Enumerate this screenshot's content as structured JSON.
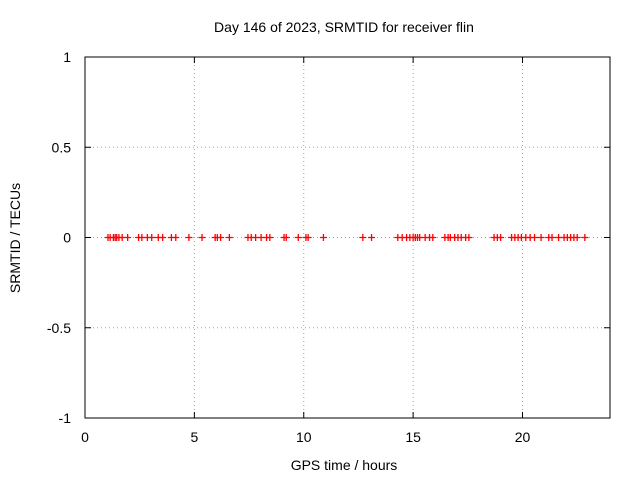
{
  "chart_data": {
    "type": "scatter",
    "title": "Day 146 of 2023, SRMTID for receiver flin",
    "xlabel": "GPS time / hours",
    "ylabel": "SRMTID / TECUs",
    "xlim": [
      0,
      24
    ],
    "ylim": [
      -1,
      1
    ],
    "x_ticks": [
      0,
      5,
      10,
      15,
      20
    ],
    "x_tick_labels": [
      "0",
      "5",
      "10",
      "15",
      "20"
    ],
    "y_ticks": [
      1,
      0.5,
      0,
      -0.5,
      -1
    ],
    "y_tick_labels": [
      "1",
      "0.5",
      "0",
      "-0.5",
      "-1"
    ],
    "grid": true,
    "marker": "+",
    "marker_color": "#ff0000",
    "series": [
      {
        "name": "SRMTID",
        "x": [
          1.05,
          1.15,
          1.3,
          1.38,
          1.45,
          1.55,
          1.7,
          1.95,
          2.45,
          2.6,
          2.85,
          3.05,
          3.35,
          3.55,
          3.95,
          4.15,
          4.75,
          5.35,
          5.95,
          6.05,
          6.2,
          6.6,
          7.45,
          7.6,
          7.8,
          8.05,
          8.3,
          8.45,
          9.1,
          9.2,
          9.75,
          10.1,
          10.2,
          10.9,
          12.7,
          13.1,
          14.3,
          14.5,
          14.7,
          14.85,
          15.0,
          15.1,
          15.2,
          15.3,
          15.55,
          15.75,
          15.9,
          16.45,
          16.6,
          16.7,
          16.9,
          17.05,
          17.2,
          17.4,
          17.55,
          18.7,
          18.85,
          19.0,
          19.5,
          19.65,
          19.8,
          19.95,
          20.15,
          20.35,
          20.55,
          20.85,
          21.2,
          21.35,
          21.65,
          21.9,
          22.05,
          22.2,
          22.35,
          22.5,
          22.85
        ],
        "y": [
          0,
          0,
          0,
          0,
          0,
          0,
          0,
          0,
          0,
          0,
          0,
          0,
          0,
          0,
          0,
          0,
          0,
          0,
          0,
          0,
          0,
          0,
          0,
          0,
          0,
          0,
          0,
          0,
          0,
          0,
          0,
          0,
          0,
          0,
          0,
          0,
          0,
          0,
          0,
          0,
          0,
          0,
          0,
          0,
          0,
          0,
          0,
          0,
          0,
          0,
          0,
          0,
          0,
          0,
          0,
          0,
          0,
          0,
          0,
          0,
          0,
          0,
          0,
          0,
          0,
          0,
          0,
          0,
          0,
          0,
          0,
          0,
          0,
          0,
          0
        ]
      }
    ]
  }
}
